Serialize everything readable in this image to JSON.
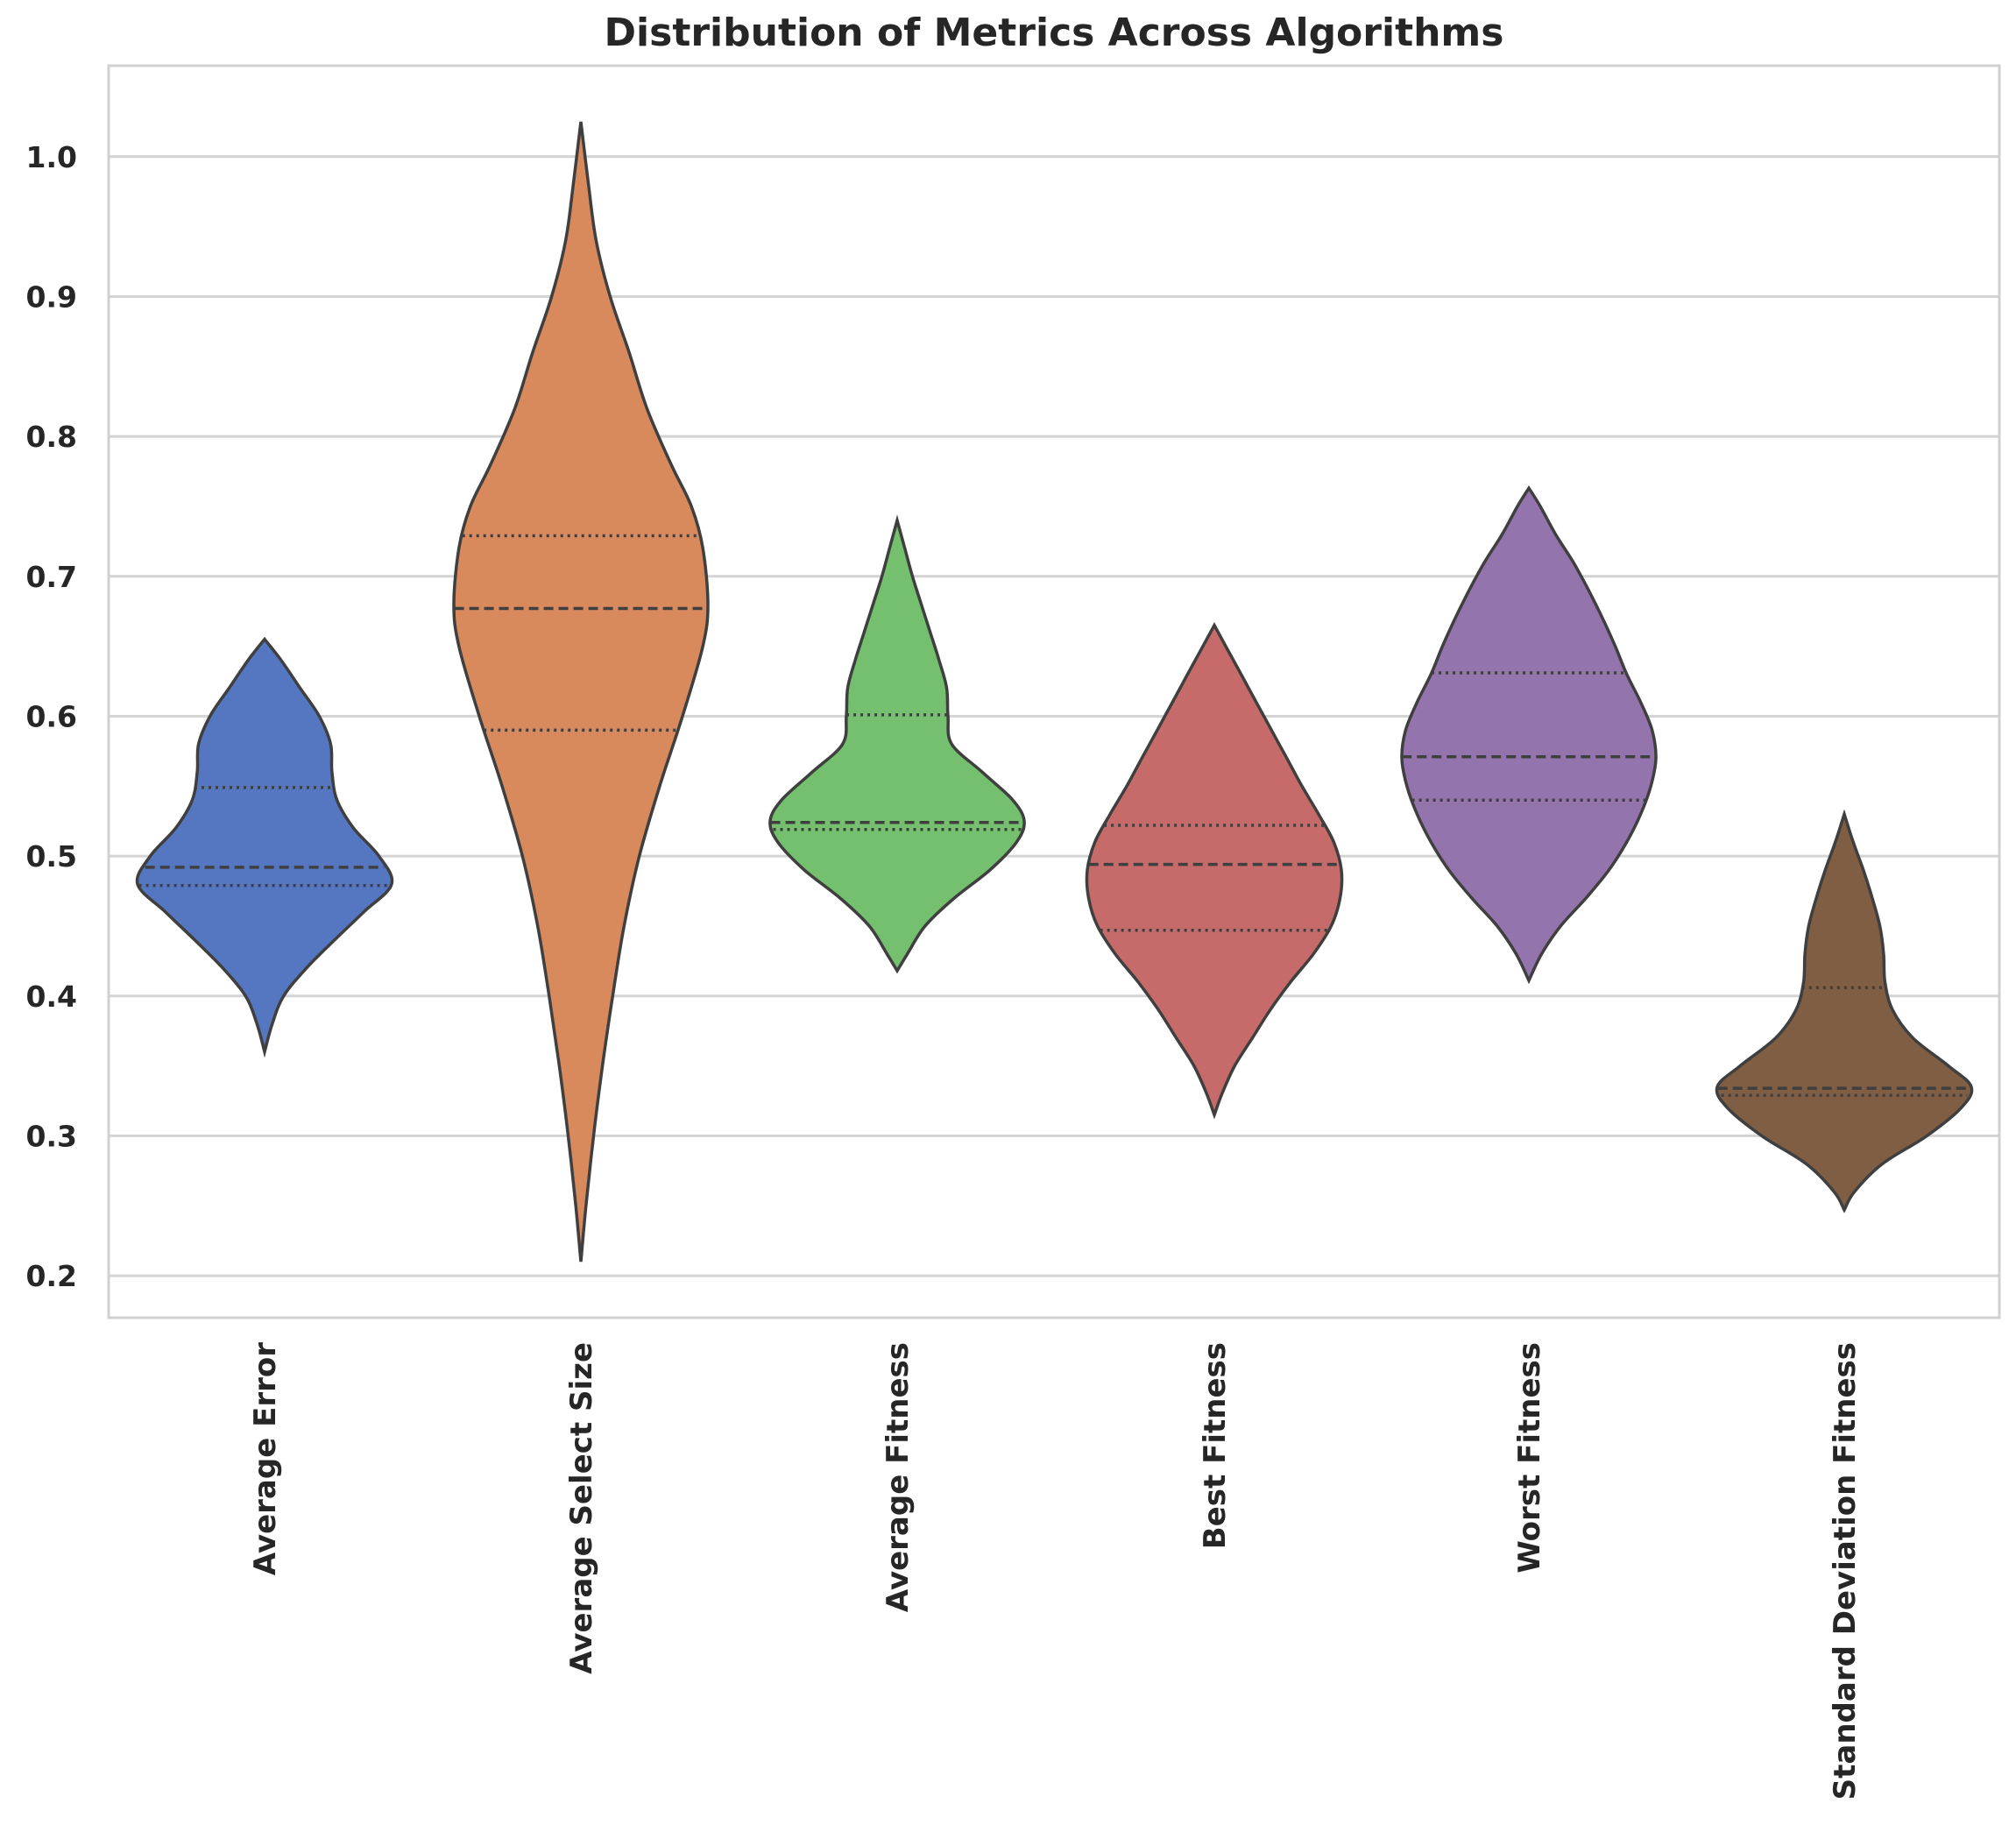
{
  "chart_data": {
    "type": "violin",
    "title": "Distribution of Metrics Across Algorithms",
    "xlabel": "",
    "ylabel": "",
    "ylim": [
      0.17,
      1.065
    ],
    "yticks": [
      0.2,
      0.3,
      0.4,
      0.5,
      0.6,
      0.7,
      0.8,
      0.9,
      1.0
    ],
    "ytick_labels": [
      "0.2",
      "0.3",
      "0.4",
      "0.5",
      "0.6",
      "0.7",
      "0.8",
      "0.9",
      "1.0"
    ],
    "grid": true,
    "categories": [
      "Average Error",
      "Average Select Size",
      "Average Fitness",
      "Best Fitness",
      "Worst Fitness",
      "Standard Deviation Fitness"
    ],
    "series": [
      {
        "name": "Average Error",
        "color": "#5577c2",
        "min": 0.36,
        "max": 0.655,
        "q1": 0.479,
        "median": 0.492,
        "q3": 0.549,
        "density": [
          [
            0.36,
            0.0
          ],
          [
            0.38,
            0.06
          ],
          [
            0.4,
            0.15
          ],
          [
            0.42,
            0.33
          ],
          [
            0.44,
            0.55
          ],
          [
            0.46,
            0.78
          ],
          [
            0.48,
            1.0
          ],
          [
            0.5,
            0.9
          ],
          [
            0.52,
            0.7
          ],
          [
            0.54,
            0.57
          ],
          [
            0.56,
            0.53
          ],
          [
            0.58,
            0.52
          ],
          [
            0.6,
            0.43
          ],
          [
            0.62,
            0.28
          ],
          [
            0.64,
            0.13
          ],
          [
            0.655,
            0.0
          ]
        ]
      },
      {
        "name": "Average Select Size",
        "color": "#d98a5d",
        "min": 0.21,
        "max": 1.025,
        "q1": 0.59,
        "median": 0.677,
        "q3": 0.729,
        "density": [
          [
            0.21,
            0.0
          ],
          [
            0.25,
            0.04
          ],
          [
            0.3,
            0.1
          ],
          [
            0.35,
            0.17
          ],
          [
            0.4,
            0.25
          ],
          [
            0.45,
            0.34
          ],
          [
            0.5,
            0.46
          ],
          [
            0.55,
            0.62
          ],
          [
            0.6,
            0.8
          ],
          [
            0.65,
            0.96
          ],
          [
            0.68,
            1.0
          ],
          [
            0.72,
            0.96
          ],
          [
            0.75,
            0.87
          ],
          [
            0.78,
            0.71
          ],
          [
            0.82,
            0.52
          ],
          [
            0.86,
            0.38
          ],
          [
            0.9,
            0.23
          ],
          [
            0.94,
            0.12
          ],
          [
            0.98,
            0.06
          ],
          [
            1.025,
            0.0
          ]
        ]
      },
      {
        "name": "Average Fitness",
        "color": "#74c06e",
        "min": 0.418,
        "max": 0.74,
        "q1": 0.519,
        "median": 0.524,
        "q3": 0.601,
        "density": [
          [
            0.418,
            0.0
          ],
          [
            0.43,
            0.08
          ],
          [
            0.45,
            0.22
          ],
          [
            0.47,
            0.45
          ],
          [
            0.49,
            0.73
          ],
          [
            0.51,
            0.94
          ],
          [
            0.525,
            1.0
          ],
          [
            0.54,
            0.91
          ],
          [
            0.56,
            0.67
          ],
          [
            0.58,
            0.43
          ],
          [
            0.6,
            0.4
          ],
          [
            0.62,
            0.39
          ],
          [
            0.64,
            0.33
          ],
          [
            0.66,
            0.26
          ],
          [
            0.68,
            0.19
          ],
          [
            0.7,
            0.12
          ],
          [
            0.72,
            0.06
          ],
          [
            0.74,
            0.0
          ]
        ]
      },
      {
        "name": "Best Fitness",
        "color": "#c66b69",
        "min": 0.315,
        "max": 0.665,
        "q1": 0.447,
        "median": 0.494,
        "q3": 0.522,
        "density": [
          [
            0.315,
            0.0
          ],
          [
            0.33,
            0.06
          ],
          [
            0.35,
            0.16
          ],
          [
            0.37,
            0.3
          ],
          [
            0.39,
            0.44
          ],
          [
            0.41,
            0.6
          ],
          [
            0.43,
            0.78
          ],
          [
            0.45,
            0.92
          ],
          [
            0.47,
            0.99
          ],
          [
            0.49,
            1.0
          ],
          [
            0.51,
            0.94
          ],
          [
            0.53,
            0.82
          ],
          [
            0.55,
            0.69
          ],
          [
            0.57,
            0.57
          ],
          [
            0.59,
            0.45
          ],
          [
            0.61,
            0.33
          ],
          [
            0.63,
            0.21
          ],
          [
            0.65,
            0.09
          ],
          [
            0.665,
            0.0
          ]
        ]
      },
      {
        "name": "Worst Fitness",
        "color": "#9374ad",
        "min": 0.411,
        "max": 0.763,
        "q1": 0.54,
        "median": 0.571,
        "q3": 0.631,
        "density": [
          [
            0.411,
            0.0
          ],
          [
            0.43,
            0.1
          ],
          [
            0.45,
            0.25
          ],
          [
            0.47,
            0.45
          ],
          [
            0.49,
            0.63
          ],
          [
            0.51,
            0.77
          ],
          [
            0.53,
            0.88
          ],
          [
            0.55,
            0.96
          ],
          [
            0.57,
            1.0
          ],
          [
            0.59,
            0.97
          ],
          [
            0.61,
            0.88
          ],
          [
            0.63,
            0.77
          ],
          [
            0.65,
            0.68
          ],
          [
            0.67,
            0.58
          ],
          [
            0.69,
            0.47
          ],
          [
            0.71,
            0.35
          ],
          [
            0.73,
            0.21
          ],
          [
            0.75,
            0.09
          ],
          [
            0.763,
            0.0
          ]
        ]
      },
      {
        "name": "Standard Deviation Fitness",
        "color": "#7f5e44",
        "min": 0.247,
        "max": 0.53,
        "q1": 0.329,
        "median": 0.334,
        "q3": 0.406,
        "density": [
          [
            0.247,
            0.0
          ],
          [
            0.26,
            0.08
          ],
          [
            0.28,
            0.3
          ],
          [
            0.3,
            0.65
          ],
          [
            0.32,
            0.92
          ],
          [
            0.335,
            1.0
          ],
          [
            0.35,
            0.82
          ],
          [
            0.37,
            0.54
          ],
          [
            0.39,
            0.38
          ],
          [
            0.41,
            0.32
          ],
          [
            0.43,
            0.31
          ],
          [
            0.45,
            0.28
          ],
          [
            0.47,
            0.22
          ],
          [
            0.49,
            0.15
          ],
          [
            0.51,
            0.07
          ],
          [
            0.53,
            0.0
          ]
        ]
      }
    ]
  }
}
